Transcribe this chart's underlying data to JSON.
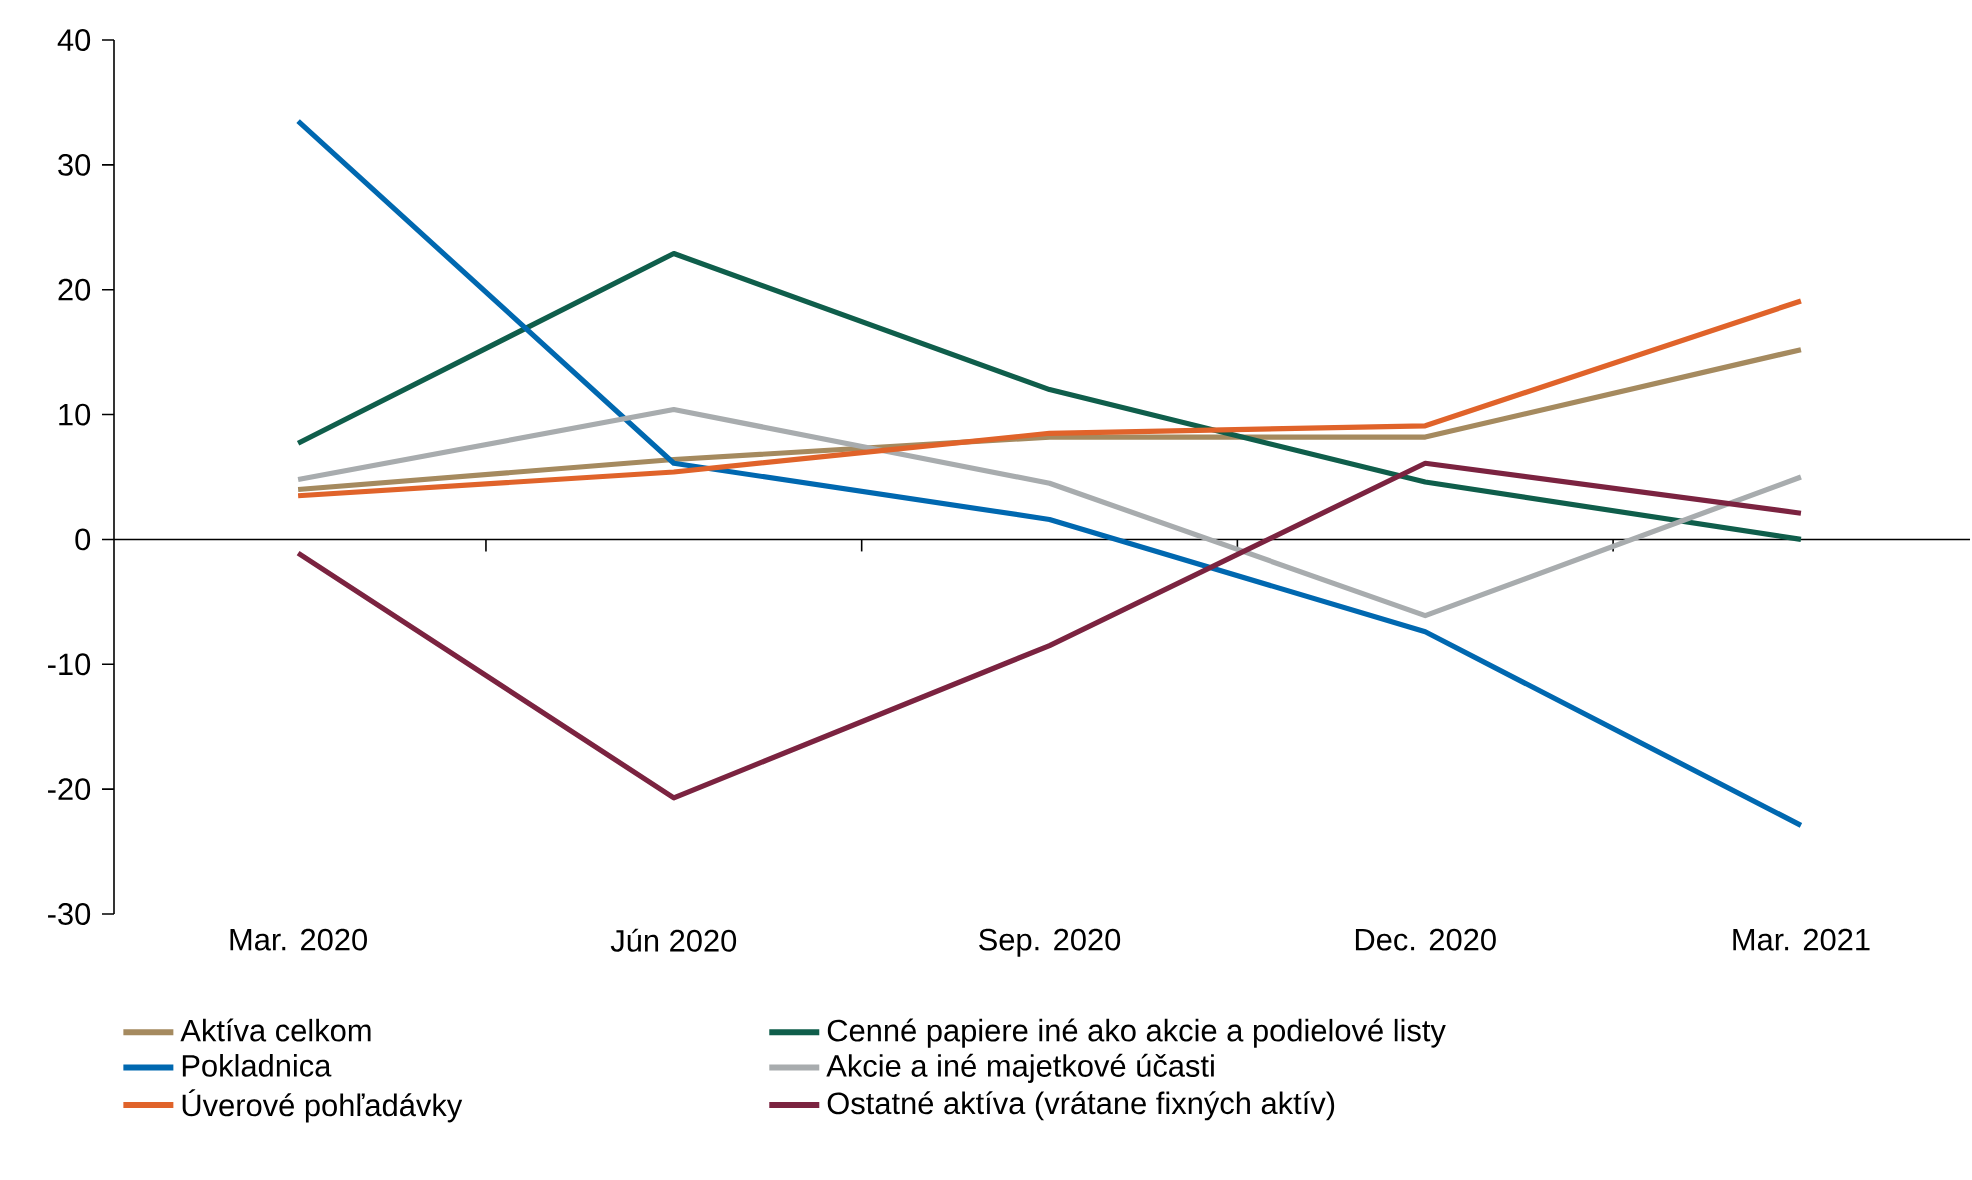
{
  "chart_data": {
    "type": "line",
    "categories": [
      "Mar. 2020",
      "Jún 2020",
      "Sep. 2020",
      "Dec. 2020",
      "Mar. 2021"
    ],
    "ylim": [
      -30,
      40
    ],
    "yticks": [
      -30,
      -20,
      -10,
      0,
      10,
      20,
      30,
      40
    ],
    "legend": "bottom",
    "marker": "none",
    "line_style": "solid",
    "series": [
      {
        "name": "Aktíva celkom",
        "color": "#a58a5f",
        "values": [
          4.0,
          6.4,
          8.2,
          8.2,
          15.2
        ]
      },
      {
        "name": "Cenné papiere iné ako akcie a podielové listy",
        "color": "#0f5e4b",
        "values": [
          7.7,
          22.9,
          12.0,
          4.6,
          0.0
        ]
      },
      {
        "name": "Pokladnica",
        "color": "#0068b0",
        "values": [
          33.5,
          6.1,
          1.6,
          -7.4,
          -22.9
        ]
      },
      {
        "name": "Akcie a iné majetkové účasti",
        "color": "#a8acae",
        "values": [
          4.8,
          10.4,
          4.5,
          -6.1,
          5.0
        ]
      },
      {
        "name": "Úverové pohľadávky",
        "color": "#e0632a",
        "values": [
          3.5,
          5.4,
          8.5,
          9.1,
          19.1
        ]
      },
      {
        "name": "Ostatné aktíva (vrátane fixných aktív)",
        "color": "#7b2340",
        "values": [
          -1.1,
          -20.7,
          -8.5,
          6.1,
          2.1
        ]
      }
    ]
  }
}
